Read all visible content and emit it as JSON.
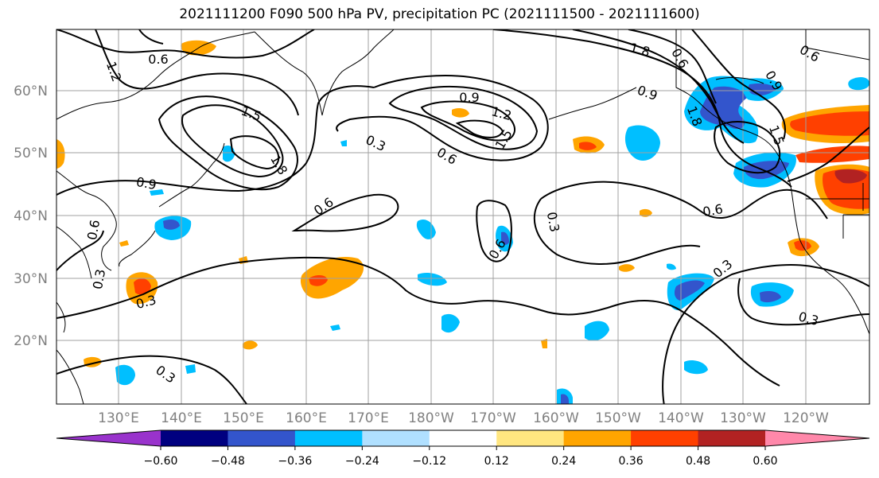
{
  "title": "2021111200 F090 500 hPa PV, precipitation PC (2021111500 - 2021111600)",
  "lat_labels": [
    "60°N",
    "50°N",
    "40°N",
    "30°N",
    "20°N"
  ],
  "lon_labels": [
    "130°E",
    "140°E",
    "150°E",
    "160°E",
    "170°E",
    "180°W",
    "170°W",
    "160°W",
    "150°W",
    "140°W",
    "130°W",
    "120°W"
  ],
  "contour_labels": [
    "0.6",
    "1.2",
    "1.5",
    "1.8",
    "0.9",
    "0.3",
    "0.6",
    "0.9",
    "1.2",
    "1.5",
    "0.6",
    "0.3",
    "0.6",
    "0.6",
    "0.3",
    "0.6",
    "0.3",
    "0.3",
    "0.3",
    "0.9",
    "1.5",
    "1.8",
    "0.6",
    "0.9",
    "0.3",
    "0.6",
    "1.8"
  ],
  "colorbar": {
    "ticks": [
      "−0.60",
      "−0.48",
      "−0.36",
      "−0.24",
      "−0.12",
      "0.12",
      "0.24",
      "0.36",
      "0.48",
      "0.60"
    ],
    "colors": [
      "#9933cc",
      "#000080",
      "#3355cc",
      "#00bfff",
      "#b0e0ff",
      "#ffffff",
      "#ffe680",
      "#ffa500",
      "#ff4000",
      "#b22222",
      "#ff88aa"
    ]
  }
}
